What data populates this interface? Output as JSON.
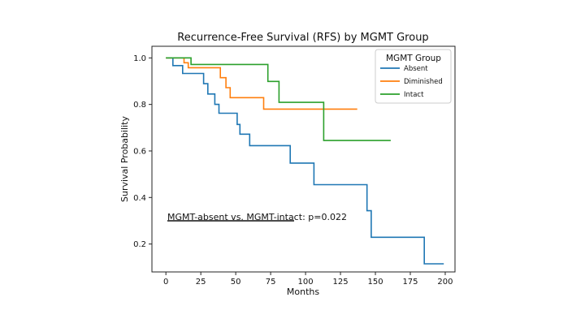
{
  "chart_data": {
    "type": "line",
    "title": "Recurrence-Free Survival (RFS) by MGMT Group",
    "xlabel": "Months",
    "ylabel": "Survival Probability",
    "xlim": [
      -10,
      207
    ],
    "ylim": [
      0.08,
      1.05
    ],
    "x_ticks": [
      0,
      25,
      50,
      75,
      100,
      125,
      150,
      175,
      200
    ],
    "y_ticks": [
      0.2,
      0.4,
      0.6,
      0.8,
      1.0
    ],
    "x_tick_labels": [
      "0",
      "25",
      "50",
      "75",
      "100",
      "125",
      "150",
      "175",
      "200"
    ],
    "y_tick_labels": [
      "0.2",
      "0.4",
      "0.6",
      "0.8",
      "1.0"
    ],
    "grid": false,
    "legend": {
      "title": "MGMT Group",
      "placement": "top-right",
      "entries": [
        "Absent",
        "Diminished",
        "Intact"
      ]
    },
    "annotation": {
      "underlined_text": "MGMT-absent vs. MGMT-intact",
      "rest_text": ": p=0.022"
    },
    "series": [
      {
        "name": "Absent",
        "color": "#1f77b4",
        "points": [
          [
            0,
            1.0
          ],
          [
            5,
            1.0
          ],
          [
            5,
            0.967
          ],
          [
            12,
            0.967
          ],
          [
            12,
            0.933
          ],
          [
            27,
            0.933
          ],
          [
            27,
            0.889
          ],
          [
            30,
            0.889
          ],
          [
            30,
            0.845
          ],
          [
            35,
            0.845
          ],
          [
            35,
            0.8
          ],
          [
            38,
            0.8
          ],
          [
            38,
            0.762
          ],
          [
            51,
            0.762
          ],
          [
            51,
            0.714
          ],
          [
            53,
            0.714
          ],
          [
            53,
            0.672
          ],
          [
            60,
            0.672
          ],
          [
            60,
            0.623
          ],
          [
            89,
            0.623
          ],
          [
            89,
            0.548
          ],
          [
            106,
            0.548
          ],
          [
            106,
            0.455
          ],
          [
            144,
            0.455
          ],
          [
            144,
            0.343
          ],
          [
            147,
            0.343
          ],
          [
            147,
            0.229
          ],
          [
            185,
            0.229
          ],
          [
            185,
            0.115
          ],
          [
            199,
            0.115
          ]
        ]
      },
      {
        "name": "Diminished",
        "color": "#ff7f0e",
        "points": [
          [
            0,
            1.0
          ],
          [
            13,
            1.0
          ],
          [
            13,
            0.979
          ],
          [
            16,
            0.979
          ],
          [
            16,
            0.958
          ],
          [
            39,
            0.958
          ],
          [
            39,
            0.915
          ],
          [
            43,
            0.915
          ],
          [
            43,
            0.872
          ],
          [
            46,
            0.872
          ],
          [
            46,
            0.829
          ],
          [
            70,
            0.829
          ],
          [
            70,
            0.78
          ],
          [
            137,
            0.78
          ]
        ]
      },
      {
        "name": "Intact",
        "color": "#2ca02c",
        "points": [
          [
            0,
            1.0
          ],
          [
            18,
            1.0
          ],
          [
            18,
            0.972
          ],
          [
            73,
            0.972
          ],
          [
            73,
            0.899
          ],
          [
            81,
            0.899
          ],
          [
            81,
            0.809
          ],
          [
            113,
            0.809
          ],
          [
            113,
            0.645
          ],
          [
            161,
            0.645
          ]
        ]
      }
    ]
  }
}
